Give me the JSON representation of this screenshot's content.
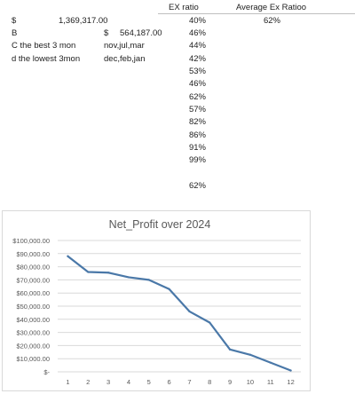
{
  "sheet": {
    "header": {
      "ex_ratio": "EX ratio",
      "avg_ex_ratio": "Average Ex Ratioo"
    },
    "row1": {
      "currency": "$",
      "amount": "1,369,317.00",
      "ratio": "40%",
      "avg": "62%"
    },
    "row2": {
      "label": "B",
      "currency": "$",
      "amount": "564,187.00",
      "ratio": "46%"
    },
    "row3": {
      "label": "C the best 3 mon",
      "months": "nov,jul,mar",
      "ratio": "44%"
    },
    "row4": {
      "label": "d the lowest 3mon",
      "months": "dec,feb,jan",
      "ratio": "42%"
    },
    "ratios_more": [
      "53%",
      "46%",
      "62%",
      "57%",
      "82%",
      "86%",
      "91%",
      "99%"
    ],
    "ratio_summary": "62%"
  },
  "chart_data": {
    "type": "line",
    "title": "Net_Profit over 2024",
    "xlabel": "",
    "ylabel": "",
    "x": [
      1,
      2,
      3,
      4,
      5,
      6,
      7,
      8,
      9,
      10,
      11,
      12
    ],
    "series": [
      {
        "values": [
          88000,
          76000,
          75500,
          72000,
          70000,
          63000,
          46000,
          37500,
          17000,
          13000,
          7000,
          1000
        ]
      }
    ],
    "ylim": [
      0,
      100000
    ],
    "yticks": [
      "$-",
      "$10,000.00",
      "$20,000.00",
      "$30,000.00",
      "$40,000.00",
      "$50,000.00",
      "$60,000.00",
      "$70,000.00",
      "$80,000.00",
      "$90,000.00",
      "$100,000.00"
    ],
    "grid": true,
    "legend": "none",
    "colors": {
      "line": "#4a78a8",
      "grid": "#d9d9d9",
      "axis_text": "#595959",
      "title": "#595959"
    }
  }
}
